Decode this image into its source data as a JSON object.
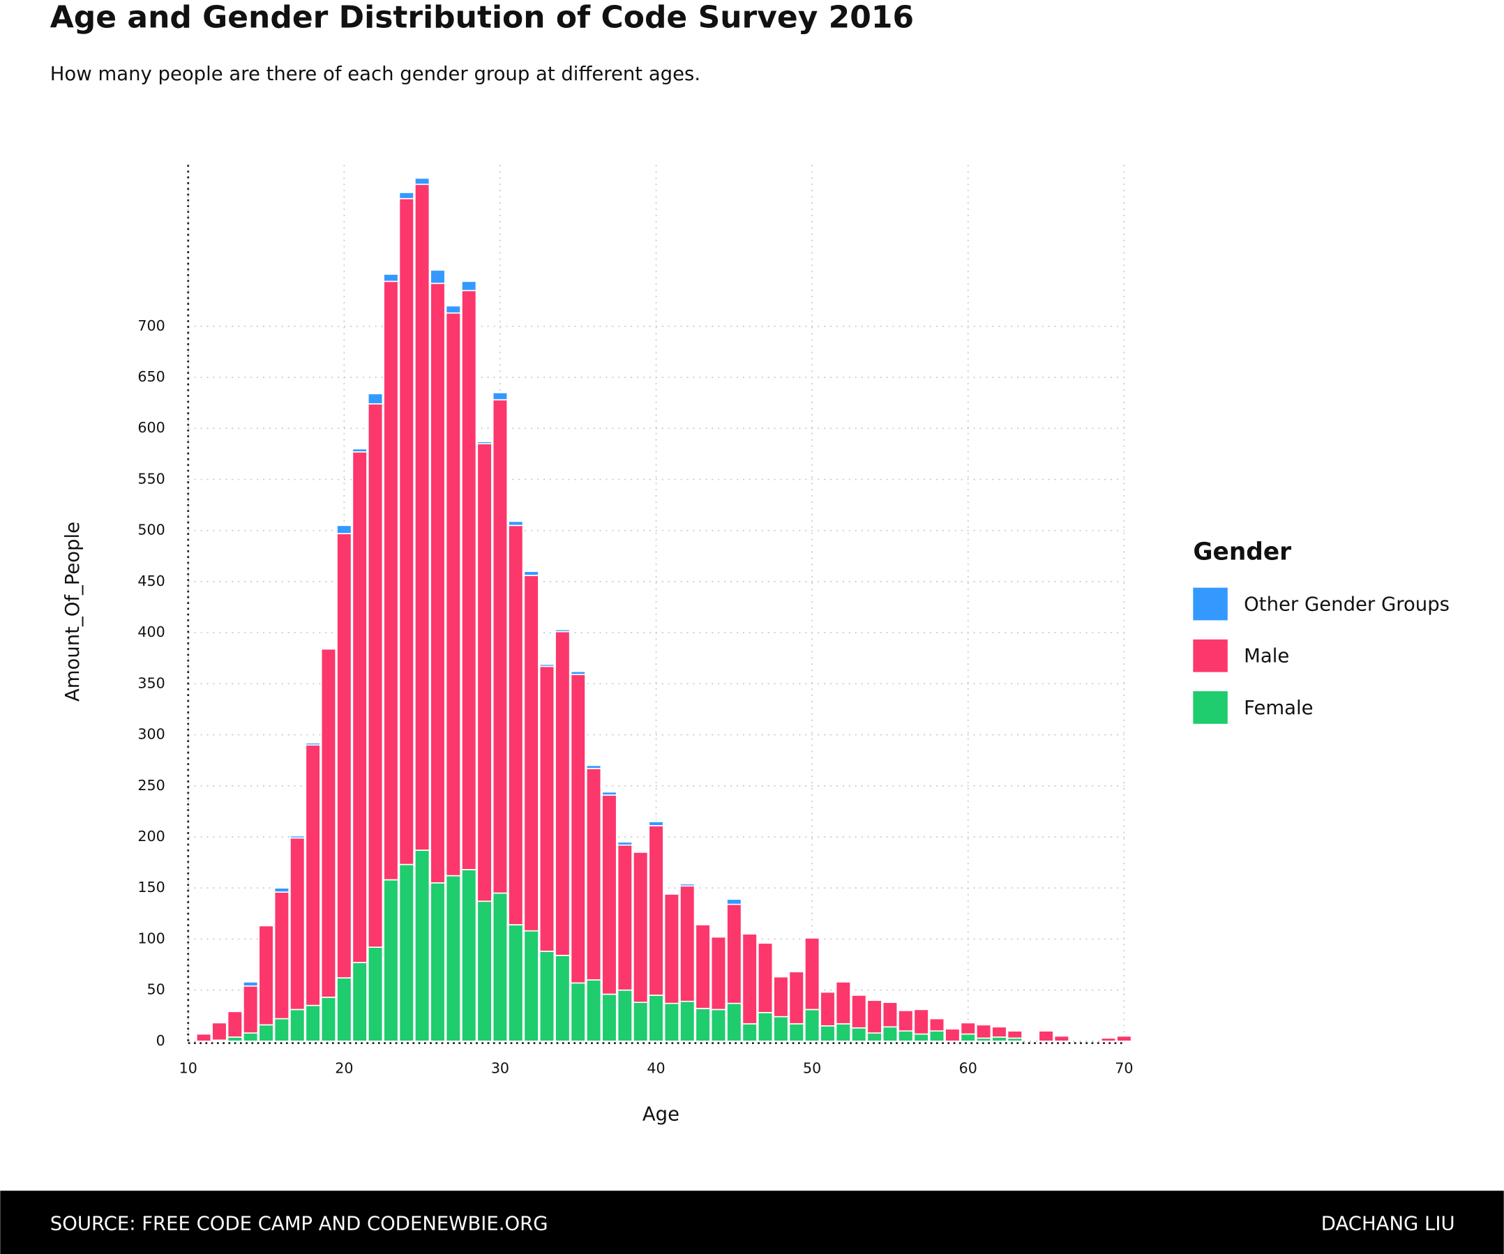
{
  "chart_data": {
    "type": "stacked_bar",
    "title": "Age and Gender Distribution of Code Survey 2016",
    "subtitle": "How many people are there of each gender group at different ages.",
    "x_label": "Age",
    "y_label": "Amount_Of_People",
    "x": [
      11,
      12,
      13,
      14,
      15,
      16,
      17,
      18,
      19,
      20,
      21,
      22,
      23,
      24,
      25,
      26,
      27,
      28,
      29,
      30,
      31,
      32,
      33,
      34,
      35,
      36,
      37,
      38,
      39,
      40,
      41,
      42,
      43,
      44,
      45,
      46,
      47,
      48,
      49,
      50,
      51,
      52,
      53,
      54,
      55,
      56,
      57,
      58,
      59,
      60,
      61,
      62,
      63,
      64,
      65,
      66,
      67,
      68,
      69,
      70
    ],
    "series": [
      {
        "name": "Female",
        "color": "#1fcc6e",
        "values": [
          0,
          1,
          4,
          8,
          16,
          22,
          31,
          35,
          43,
          62,
          77,
          92,
          158,
          173,
          187,
          155,
          162,
          168,
          137,
          145,
          114,
          108,
          88,
          84,
          57,
          60,
          46,
          50,
          38,
          45,
          37,
          39,
          32,
          31,
          37,
          17,
          28,
          24,
          17,
          31,
          15,
          17,
          13,
          8,
          14,
          10,
          7,
          10,
          0,
          7,
          3,
          4,
          3,
          0,
          0,
          0,
          0,
          0,
          0,
          0
        ]
      },
      {
        "name": "Male",
        "color": "#fc376b",
        "values": [
          7,
          17,
          25,
          46,
          97,
          124,
          168,
          255,
          341,
          435,
          500,
          532,
          586,
          652,
          652,
          587,
          551,
          567,
          448,
          483,
          391,
          348,
          279,
          317,
          302,
          207,
          195,
          142,
          147,
          166,
          107,
          113,
          82,
          71,
          97,
          88,
          68,
          39,
          51,
          70,
          33,
          41,
          32,
          32,
          24,
          20,
          24,
          12,
          12,
          11,
          13,
          10,
          7,
          0,
          10,
          5,
          0,
          0,
          3,
          5
        ]
      },
      {
        "name": "Other Gender Groups",
        "color": "#3399ff",
        "values": [
          0,
          0,
          0,
          4,
          0,
          4,
          2,
          2,
          0,
          8,
          3,
          10,
          7,
          6,
          6,
          13,
          7,
          9,
          2,
          7,
          4,
          4,
          2,
          2,
          3,
          3,
          3,
          3,
          0,
          4,
          0,
          2,
          0,
          0,
          5,
          0,
          0,
          0,
          0,
          0,
          0,
          0,
          0,
          0,
          0,
          0,
          0,
          0,
          0,
          0,
          0,
          0,
          0,
          0,
          0,
          0,
          0,
          0,
          0,
          0
        ]
      }
    ],
    "xlim": [
      10,
      70
    ],
    "xticks": [
      10,
      20,
      30,
      40,
      50,
      60,
      70
    ],
    "ylim": [
      0,
      858
    ],
    "yticks": [
      0,
      50,
      100,
      150,
      200,
      250,
      300,
      350,
      400,
      450,
      500,
      550,
      600,
      650,
      700
    ],
    "grid": true,
    "legend_title": "Gender",
    "legend_position": "right",
    "source": "SOURCE: FREE CODE CAMP AND CODENEWBIE.ORG",
    "author": "DACHANG LIU"
  }
}
